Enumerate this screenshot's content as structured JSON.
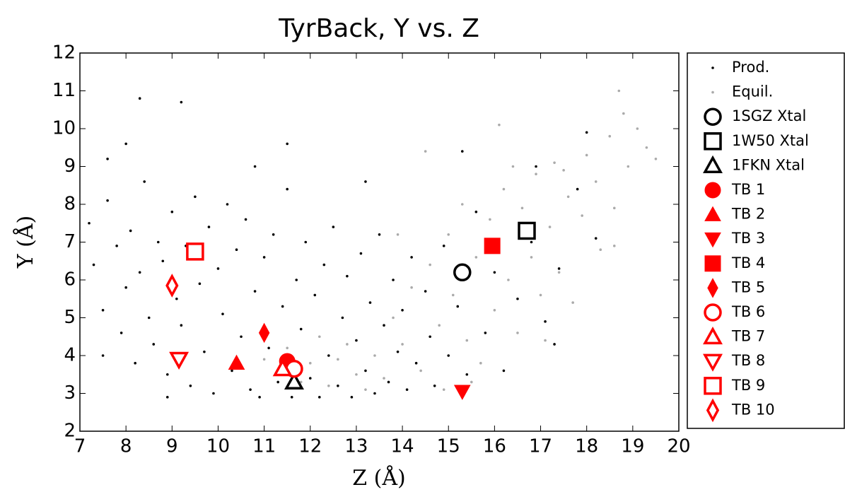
{
  "chart_data": {
    "type": "scatter",
    "title": "TyrBack, Y vs. Z",
    "x_label": "Z (Å)",
    "y_label": "Y (Å)",
    "xlim": [
      7,
      20
    ],
    "ylim": [
      2,
      12
    ],
    "xticks": [
      7,
      8,
      9,
      10,
      11,
      12,
      13,
      14,
      15,
      16,
      17,
      18,
      19,
      20
    ],
    "yticks": [
      2,
      3,
      4,
      5,
      6,
      7,
      8,
      9,
      10,
      11,
      12
    ],
    "series": [
      {
        "name": "Prod.",
        "color": "#000000",
        "marker": "point",
        "filled": true,
        "x": [
          7.2,
          7.3,
          7.5,
          7.6,
          7.8,
          7.9,
          8.0,
          8.1,
          8.2,
          8.3,
          8.4,
          8.5,
          8.6,
          8.7,
          8.8,
          8.9,
          9.0,
          9.1,
          9.2,
          9.3,
          9.4,
          9.5,
          9.6,
          9.7,
          9.8,
          9.9,
          10.0,
          10.1,
          10.2,
          10.3,
          10.4,
          10.5,
          10.6,
          10.7,
          10.8,
          10.9,
          11.0,
          11.1,
          11.2,
          11.3,
          11.4,
          11.5,
          11.6,
          11.7,
          11.8,
          11.9,
          12.0,
          12.1,
          12.2,
          12.3,
          12.4,
          12.5,
          12.6,
          12.7,
          12.8,
          12.9,
          13.0,
          13.1,
          13.2,
          13.3,
          13.4,
          13.5,
          13.6,
          13.7,
          13.8,
          13.9,
          14.0,
          14.1,
          14.2,
          14.3,
          14.5,
          14.6,
          14.7,
          14.9,
          15.0,
          15.2,
          15.4,
          15.6,
          15.8,
          16.0,
          16.2,
          16.5,
          16.8,
          17.1,
          17.4,
          17.8,
          18.0,
          18.2,
          8.3,
          9.2,
          8.0,
          7.6,
          11.5,
          10.8,
          13.2,
          15.3,
          16.9,
          8.9,
          7.5,
          17.3
        ],
        "values": [
          7.5,
          6.4,
          5.2,
          8.1,
          6.9,
          4.6,
          5.8,
          7.3,
          3.8,
          6.2,
          8.6,
          5.0,
          4.3,
          7.0,
          6.5,
          3.5,
          7.8,
          5.5,
          4.8,
          6.9,
          3.2,
          8.2,
          5.9,
          4.1,
          7.4,
          3.0,
          6.3,
          5.1,
          8.0,
          3.6,
          6.8,
          4.5,
          7.6,
          3.1,
          5.7,
          2.9,
          6.6,
          4.2,
          7.2,
          3.3,
          5.3,
          8.4,
          2.9,
          6.0,
          4.7,
          7.0,
          3.4,
          5.6,
          2.9,
          6.4,
          4.0,
          7.4,
          3.2,
          5.0,
          6.1,
          2.9,
          4.4,
          6.7,
          3.6,
          5.4,
          3.0,
          7.2,
          4.8,
          3.3,
          6.0,
          4.1,
          5.2,
          3.1,
          6.6,
          3.8,
          5.7,
          4.5,
          3.2,
          6.9,
          4.0,
          5.3,
          3.5,
          7.8,
          4.6,
          6.2,
          3.6,
          5.5,
          7.0,
          4.9,
          6.3,
          8.4,
          9.9,
          7.1,
          10.8,
          10.7,
          9.6,
          9.2,
          9.6,
          9.0,
          8.6,
          9.4,
          9.0,
          2.9,
          4.0,
          4.3
        ]
      },
      {
        "name": "Equil.",
        "color": "#aaaaaa",
        "marker": "point",
        "filled": true,
        "x": [
          11.0,
          11.3,
          11.5,
          11.8,
          12.0,
          12.2,
          12.4,
          12.6,
          12.8,
          13.0,
          13.2,
          13.4,
          13.6,
          13.8,
          14.0,
          14.2,
          14.4,
          14.6,
          14.8,
          15.0,
          15.1,
          15.3,
          15.4,
          15.6,
          15.7,
          15.9,
          16.0,
          16.2,
          16.3,
          16.5,
          16.6,
          16.8,
          16.9,
          17.0,
          17.2,
          17.3,
          17.4,
          17.6,
          17.7,
          17.9,
          18.0,
          18.2,
          18.3,
          18.5,
          18.6,
          18.8,
          18.9,
          19.1,
          19.3,
          19.5,
          18.7,
          18.6,
          17.5,
          16.1,
          14.5,
          16.4,
          14.9,
          13.9,
          15.5,
          17.1
        ],
        "values": [
          3.9,
          3.5,
          4.2,
          3.3,
          3.8,
          4.5,
          3.2,
          3.9,
          4.3,
          3.5,
          3.1,
          4.0,
          3.4,
          5.0,
          4.3,
          5.8,
          3.6,
          6.4,
          4.8,
          7.2,
          5.6,
          8.0,
          4.4,
          6.6,
          3.8,
          7.6,
          5.2,
          8.4,
          6.0,
          4.6,
          7.9,
          6.6,
          8.8,
          5.6,
          7.4,
          9.1,
          6.2,
          8.2,
          5.4,
          7.7,
          9.3,
          8.6,
          6.8,
          9.8,
          7.9,
          10.4,
          9.0,
          10.0,
          9.5,
          9.2,
          11.0,
          6.9,
          8.9,
          10.1,
          9.4,
          9.0,
          3.1,
          7.2,
          3.3,
          4.4
        ]
      },
      {
        "name": "1SGZ Xtal",
        "color": "#000000",
        "marker": "circle",
        "filled": false,
        "x": [
          15.3
        ],
        "values": [
          6.2
        ]
      },
      {
        "name": "1W50 Xtal",
        "color": "#000000",
        "marker": "square",
        "filled": false,
        "x": [
          16.7
        ],
        "values": [
          7.3
        ]
      },
      {
        "name": "1FKN Xtal",
        "color": "#000000",
        "marker": "triangle",
        "filled": false,
        "x": [
          11.65
        ],
        "values": [
          3.3
        ]
      },
      {
        "name": "TB 1",
        "color": "#ff0000",
        "marker": "circle",
        "filled": true,
        "x": [
          11.5
        ],
        "values": [
          3.85
        ]
      },
      {
        "name": "TB 2",
        "color": "#ff0000",
        "marker": "triangle",
        "filled": true,
        "x": [
          10.4
        ],
        "values": [
          3.8
        ]
      },
      {
        "name": "TB 3",
        "color": "#ff0000",
        "marker": "triangle-down",
        "filled": true,
        "x": [
          15.3
        ],
        "values": [
          3.05
        ]
      },
      {
        "name": "TB 4",
        "color": "#ff0000",
        "marker": "square",
        "filled": true,
        "x": [
          15.95
        ],
        "values": [
          6.9
        ]
      },
      {
        "name": "TB 5",
        "color": "#ff0000",
        "marker": "diamond",
        "filled": true,
        "x": [
          11.0
        ],
        "values": [
          4.6
        ]
      },
      {
        "name": "TB 6",
        "color": "#ff0000",
        "marker": "circle",
        "filled": false,
        "x": [
          11.65
        ],
        "values": [
          3.65
        ]
      },
      {
        "name": "TB 7",
        "color": "#ff0000",
        "marker": "triangle",
        "filled": false,
        "x": [
          11.4
        ],
        "values": [
          3.65
        ]
      },
      {
        "name": "TB 8",
        "color": "#ff0000",
        "marker": "triangle-down",
        "filled": false,
        "x": [
          9.15
        ],
        "values": [
          3.9
        ]
      },
      {
        "name": "TB 9",
        "color": "#ff0000",
        "marker": "square",
        "filled": false,
        "x": [
          9.5
        ],
        "values": [
          6.75
        ]
      },
      {
        "name": "TB 10",
        "color": "#ff0000",
        "marker": "diamond",
        "filled": false,
        "x": [
          9.0
        ],
        "values": [
          5.85
        ]
      }
    ]
  }
}
